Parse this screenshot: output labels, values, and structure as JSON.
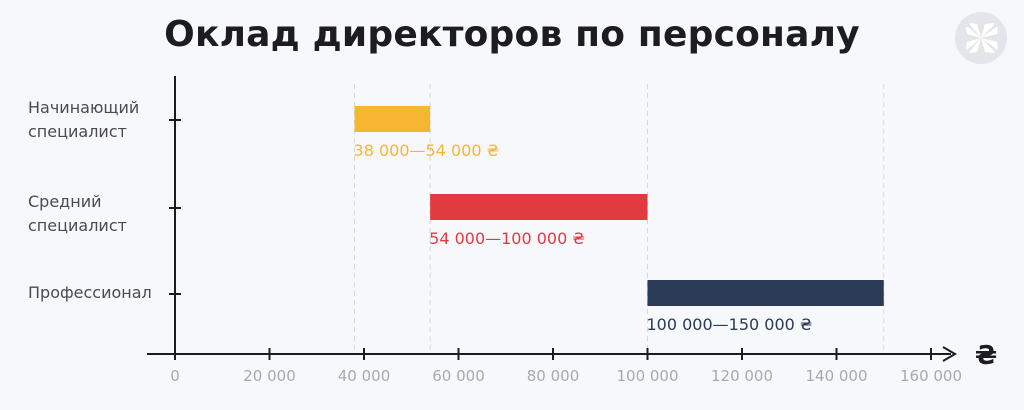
{
  "chart_data": {
    "type": "bar",
    "orientation": "horizontal-range",
    "title": "Оклад директоров по персоналу",
    "x_unit": "₴",
    "xlim": [
      0,
      160000
    ],
    "x_ticks": [
      "0",
      "20 000",
      "40 000",
      "60 000",
      "80 000",
      "100 000",
      "120 000",
      "140 000",
      "160 000"
    ],
    "grid": "vertical dashed at range bounds",
    "categories": [
      {
        "label_lines": [
          "Начинающий",
          "специалист"
        ],
        "min": 38000,
        "max": 54000,
        "range_label": "38 000—54 000 ₴",
        "color": "#f6b631"
      },
      {
        "label_lines": [
          "Средний",
          "специалист"
        ],
        "min": 54000,
        "max": 100000,
        "range_label": "54 000—100 000 ₴",
        "color": "#e13b40"
      },
      {
        "label_lines": [
          "Профессионал"
        ],
        "min": 100000,
        "max": 150000,
        "range_label": "100 000—150 000 ₴",
        "color": "#2b3a55"
      }
    ]
  }
}
